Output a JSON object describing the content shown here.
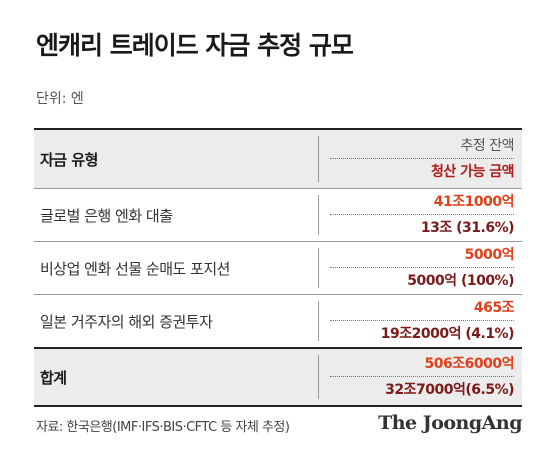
{
  "title": "엔캐리 트레이드 자금 추정 규모",
  "unit": "단위: 엔",
  "table": {
    "header": {
      "left": "자금 유형",
      "right_top": "추정 잔액",
      "right_bottom": "청산 가능 금액"
    },
    "rows": [
      {
        "label": "글로벌 은행 엔화 대출",
        "balance": "41조1000억",
        "liquidable": "13조 (31.6%)"
      },
      {
        "label": "비상업 엔화 선물 순매도 포지션",
        "balance": "5000억",
        "liquidable": "5000억 (100%)"
      },
      {
        "label": "일본 거주자의 해외 증권투자",
        "balance": "465조",
        "liquidable": "19조2000억 (4.1%)"
      }
    ],
    "total": {
      "label": "합계",
      "balance": "506조6000억",
      "liquidable": "32조7000억(6.5%)"
    }
  },
  "source": "자료: 한국은행(IMF·IFS·BIS·CFTC 등 자체 추정)",
  "logo": "The JoongAng",
  "colors": {
    "balance": "#e0401a",
    "liquidable": "#7a1a1a",
    "header_bg": "#ececec"
  }
}
